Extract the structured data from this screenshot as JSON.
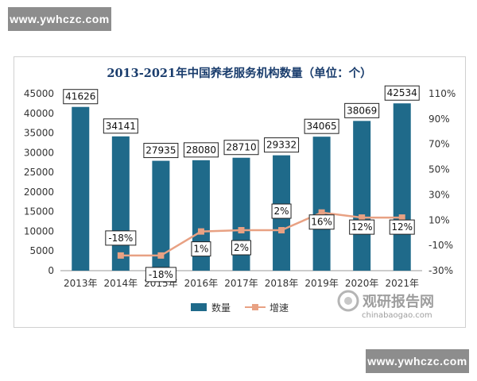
{
  "watermark": {
    "text": "www.ywhczc.com"
  },
  "brand": {
    "name": "观研报告网",
    "url": "chinabaogao.com"
  },
  "chart_data": {
    "type": "bar",
    "title": "2013-2021年中国养老服务机构数量（单位：个）",
    "categories": [
      "2013年",
      "2014年",
      "2015年",
      "2016年",
      "2017年",
      "2018年",
      "2019年",
      "2020年",
      "2021年"
    ],
    "series": [
      {
        "name": "数量",
        "type": "bar",
        "axis": "left",
        "color": "#1f6a8a",
        "values": [
          41626,
          34141,
          27935,
          28080,
          28710,
          29332,
          34065,
          38069,
          42534
        ]
      },
      {
        "name": "增速",
        "type": "line",
        "axis": "right",
        "color": "#e8a183",
        "values": [
          null,
          -18,
          -18,
          1,
          2,
          2,
          16,
          12,
          12
        ],
        "labels": [
          "",
          "-18%",
          "-18%",
          "1%",
          "2%",
          "2%",
          "16%",
          "12%",
          "12%"
        ]
      }
    ],
    "bar_labels": [
      "41626",
      "34141",
      "27935",
      "28080",
      "28710",
      "29332",
      "34065",
      "38069",
      "42534"
    ],
    "ylim_left": [
      0,
      45000
    ],
    "yticks_left": [
      "0",
      "5000",
      "10000",
      "15000",
      "20000",
      "25000",
      "30000",
      "35000",
      "40000",
      "45000"
    ],
    "ylim_right": [
      -30,
      110
    ],
    "yticks_right": [
      "-30%",
      "-10%",
      "10%",
      "30%",
      "50%",
      "70%",
      "90%",
      "110%"
    ],
    "grid": false,
    "legend_position": "bottom"
  }
}
